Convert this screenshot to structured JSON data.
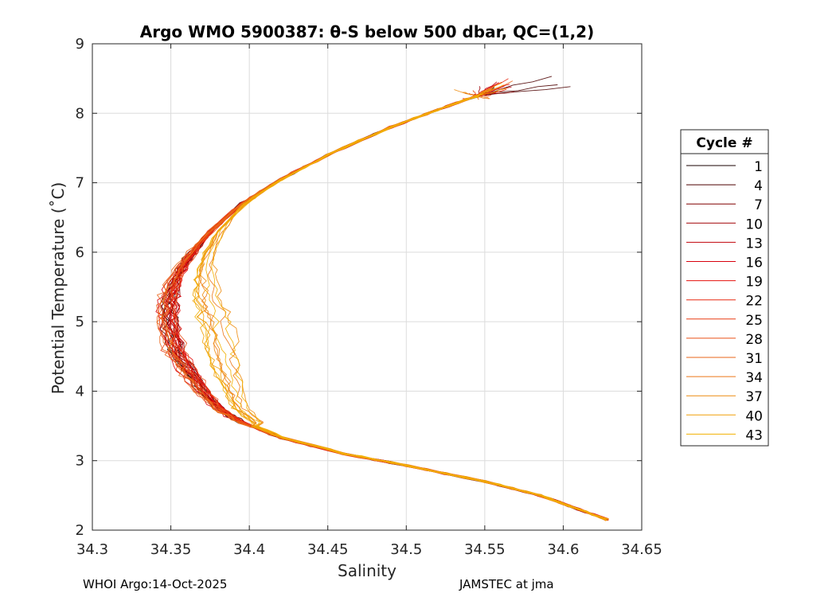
{
  "chart_data": {
    "type": "line",
    "title": "Argo WMO 5900387: θ-S below 500 dbar,  QC=(1,2)",
    "xlabel": "Salinity",
    "ylabel": "Potential Temperature (˚C)",
    "xlim": [
      34.3,
      34.65
    ],
    "ylim": [
      2,
      9
    ],
    "xticks": [
      34.3,
      34.35,
      34.4,
      34.45,
      34.5,
      34.55,
      34.6,
      34.65
    ],
    "xtick_labels": [
      "34.3",
      "34.35",
      "34.4",
      "34.45",
      "34.5",
      "34.55",
      "34.6",
      "34.65"
    ],
    "yticks": [
      2,
      3,
      4,
      5,
      6,
      7,
      8,
      9
    ],
    "ytick_labels": [
      "2",
      "3",
      "4",
      "5",
      "6",
      "7",
      "8",
      "9"
    ],
    "grid": true,
    "legend": {
      "title": "Cycle #",
      "placement": "outside-right",
      "entries": [
        "1",
        "4",
        "7",
        "10",
        "13",
        "16",
        "19",
        "22",
        "25",
        "28",
        "31",
        "34",
        "37",
        "40",
        "43"
      ],
      "colors": [
        "#1a0000",
        "#4d0000",
        "#800000",
        "#a00004",
        "#c00008",
        "#d8000c",
        "#e5100c",
        "#e82810",
        "#e83c14",
        "#ea5018",
        "#ea6418",
        "#ec7818",
        "#ee8c10",
        "#f0a008",
        "#f2b000"
      ]
    },
    "series_template": {
      "points": [
        [
          34.628,
          2.15
        ],
        [
          34.61,
          2.3
        ],
        [
          34.585,
          2.5
        ],
        [
          34.55,
          2.7
        ],
        [
          34.5,
          2.93
        ],
        [
          34.46,
          3.1
        ],
        [
          34.42,
          3.33
        ],
        [
          34.395,
          3.55
        ],
        [
          34.38,
          3.75
        ],
        [
          34.37,
          4.0
        ],
        [
          34.36,
          4.3
        ],
        [
          34.352,
          4.6
        ],
        [
          34.348,
          5.0
        ],
        [
          34.348,
          5.3
        ],
        [
          34.352,
          5.6
        ],
        [
          34.36,
          5.9
        ],
        [
          34.375,
          6.3
        ],
        [
          34.395,
          6.7
        ],
        [
          34.42,
          7.05
        ],
        [
          34.45,
          7.4
        ],
        [
          34.49,
          7.8
        ],
        [
          34.52,
          8.05
        ],
        [
          34.545,
          8.25
        ],
        [
          34.562,
          8.4
        ]
      ],
      "tips": [
        8.36,
        8.45,
        8.38,
        8.3,
        8.42,
        8.35,
        8.25,
        8.4,
        8.32,
        8.28,
        8.38,
        8.3,
        8.25,
        8.35,
        8.3
      ],
      "tip_sal": [
        34.555,
        34.598,
        34.56,
        34.545,
        34.565,
        34.556,
        34.54,
        34.562,
        34.55,
        34.543,
        34.558,
        34.548,
        34.54,
        34.568,
        34.55
      ]
    }
  },
  "footer": {
    "left": "WHOI Argo:14-Oct-2025",
    "right": "JAMSTEC at jma"
  }
}
